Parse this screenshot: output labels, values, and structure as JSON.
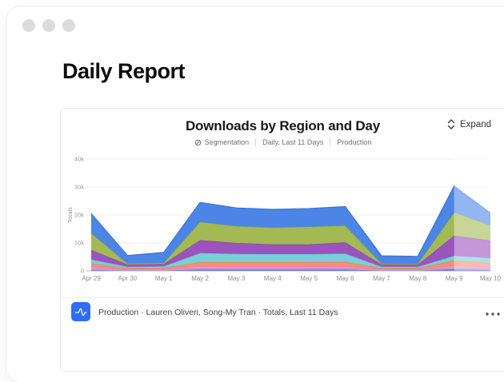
{
  "window": {
    "heading": "Daily Report"
  },
  "card": {
    "title": "Downloads by Region and Day",
    "meta": {
      "segmentation": "Segmentation",
      "range": "Daily, Last 11 Days",
      "environment": "Production"
    },
    "expand_label": "Expand",
    "footer": {
      "summary": "Production · Lauren Oliveri, Song-My Tran · Totals, Last 11 Days"
    }
  },
  "chart_data": {
    "type": "area",
    "stacked": true,
    "title": "Downloads by Region and Day",
    "ylabel": "Totals",
    "xlabel": "",
    "ylim": [
      0,
      40000
    ],
    "ytick_values": [
      0,
      10000,
      20000,
      30000,
      40000
    ],
    "ytick_labels": [
      "0",
      "10k",
      "20k",
      "30k",
      "40k"
    ],
    "categories": [
      "Apr 29",
      "Apr 30",
      "May 1",
      "May 2",
      "May 3",
      "May 4",
      "May 5",
      "May 6",
      "May 7",
      "May 8",
      "May 9",
      "May 10"
    ],
    "grid": "horizontal",
    "legend": "none",
    "last_segment_lightened": true,
    "series": [
      {
        "color": "#4a5fd0",
        "stroke": "#3a4cc0",
        "values": [
          300,
          150,
          150,
          400,
          400,
          400,
          400,
          400,
          150,
          150,
          500,
          350
        ]
      },
      {
        "color": "#b5a4e6",
        "stroke": "#a28fd9",
        "values": [
          600,
          200,
          200,
          500,
          500,
          500,
          500,
          500,
          200,
          200,
          800,
          550
        ]
      },
      {
        "color": "#f092c8",
        "stroke": "#e377b5",
        "values": [
          800,
          250,
          300,
          900,
          800,
          800,
          800,
          800,
          250,
          250,
          700,
          600
        ]
      },
      {
        "color": "#fb8f66",
        "stroke": "#f07a4e",
        "values": [
          1000,
          400,
          450,
          1300,
          1400,
          1400,
          1500,
          1500,
          400,
          400,
          1700,
          1300
        ]
      },
      {
        "color": "#79cfd7",
        "stroke": "#5fbfc9",
        "values": [
          1400,
          500,
          550,
          3300,
          3000,
          2900,
          2800,
          3000,
          500,
          500,
          1700,
          1800
        ]
      },
      {
        "color": "#9b53be",
        "stroke": "#8943ac",
        "values": [
          3400,
          800,
          850,
          4600,
          3900,
          3500,
          3500,
          4000,
          800,
          700,
          7200,
          6300
        ]
      },
      {
        "color": "#a3b954",
        "stroke": "#90a83f",
        "values": [
          6000,
          300,
          400,
          6500,
          6000,
          6000,
          6300,
          6000,
          300,
          300,
          8300,
          5400
        ]
      },
      {
        "color": "#4c85e6",
        "stroke": "#3b73d6",
        "values": [
          7000,
          2900,
          3700,
          7000,
          6500,
          6500,
          6500,
          6800,
          2800,
          2700,
          9400,
          4400
        ]
      }
    ]
  }
}
